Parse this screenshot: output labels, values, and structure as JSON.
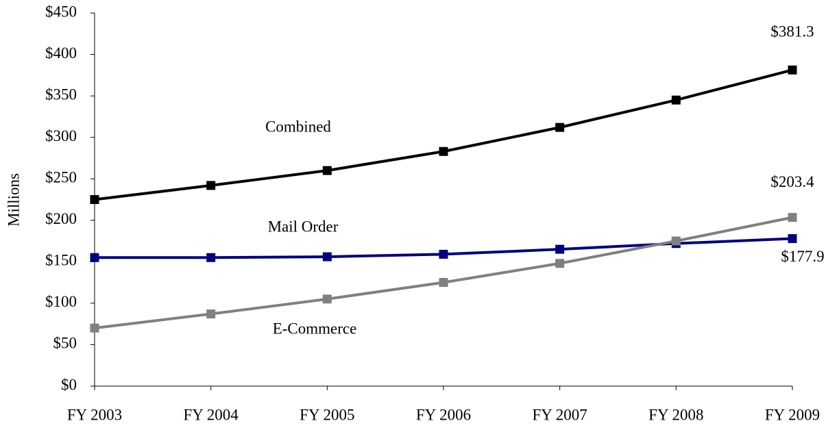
{
  "chart_data": {
    "type": "line",
    "y_label": "Millions",
    "categories": [
      "FY 2003",
      "FY 2004",
      "FY 2005",
      "FY 2006",
      "FY 2007",
      "FY 2008",
      "FY 2009"
    ],
    "series": [
      {
        "name": "Combined",
        "color": "#000000",
        "values": [
          225,
          242,
          260,
          283,
          312,
          345,
          381.3
        ],
        "value_labels": [
          null,
          null,
          null,
          null,
          null,
          null,
          "$381.3"
        ]
      },
      {
        "name": "Mail Order",
        "color": "#000080",
        "values": [
          155,
          155,
          156,
          159,
          165,
          172,
          177.9
        ],
        "value_labels": [
          null,
          null,
          null,
          null,
          null,
          null,
          "$177.9"
        ]
      },
      {
        "name": "E-Commerce",
        "color": "#808080",
        "values": [
          70,
          87,
          105,
          125,
          148,
          175,
          203.4
        ],
        "value_labels": [
          null,
          null,
          null,
          null,
          null,
          null,
          "$203.4"
        ]
      }
    ],
    "ylim": [
      0,
      450
    ],
    "yticks": [
      {
        "value": 0,
        "label": "$0"
      },
      {
        "value": 50,
        "label": "$50"
      },
      {
        "value": 100,
        "label": "$100"
      },
      {
        "value": 150,
        "label": "$150"
      },
      {
        "value": 200,
        "label": "$200"
      },
      {
        "value": 250,
        "label": "$250"
      },
      {
        "value": 300,
        "label": "$300"
      },
      {
        "value": 350,
        "label": "$350"
      },
      {
        "value": 400,
        "label": "$400"
      },
      {
        "value": 450,
        "label": "$450"
      }
    ],
    "grid": false,
    "legend": false
  }
}
